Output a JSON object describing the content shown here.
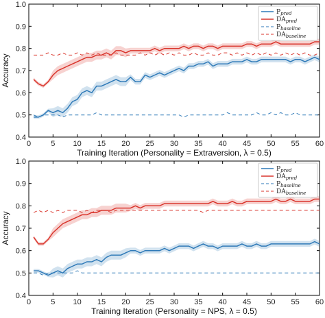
{
  "chart_data": [
    {
      "type": "line",
      "xlabel": "Training Iteration (Personality = Extraversion, λ = 0.5)",
      "ylabel": "Accuracy",
      "xlim": [
        0,
        60
      ],
      "ylim": [
        0.4,
        1.0
      ],
      "xticks": [
        "0",
        "5",
        "10",
        "15",
        "20",
        "25",
        "30",
        "35",
        "40",
        "45",
        "50",
        "55",
        "60"
      ],
      "yticks": [
        "0.4",
        "0.5",
        "0.6",
        "0.7",
        "0.8",
        "0.9",
        "1.0"
      ],
      "legend_position": "top-right",
      "grid": false,
      "series": [
        {
          "name": "P_pred",
          "label_main": "P",
          "label_sub": "pred",
          "color": "#2f7ab8",
          "style": "solid",
          "band": true,
          "x": [
            1,
            2,
            3,
            4,
            5,
            6,
            7,
            8,
            9,
            10,
            11,
            12,
            13,
            14,
            15,
            16,
            17,
            18,
            19,
            20,
            21,
            22,
            23,
            24,
            25,
            26,
            27,
            28,
            29,
            30,
            31,
            32,
            33,
            34,
            35,
            36,
            37,
            38,
            39,
            40,
            41,
            42,
            43,
            44,
            45,
            46,
            47,
            48,
            49,
            50,
            51,
            52,
            53,
            54,
            55,
            56,
            57,
            58,
            59,
            60
          ],
          "values": [
            0.49,
            0.49,
            0.5,
            0.52,
            0.51,
            0.52,
            0.51,
            0.53,
            0.56,
            0.57,
            0.6,
            0.61,
            0.6,
            0.63,
            0.63,
            0.64,
            0.65,
            0.66,
            0.65,
            0.65,
            0.67,
            0.65,
            0.65,
            0.68,
            0.67,
            0.68,
            0.69,
            0.68,
            0.69,
            0.7,
            0.71,
            0.7,
            0.72,
            0.72,
            0.73,
            0.73,
            0.74,
            0.72,
            0.73,
            0.73,
            0.73,
            0.74,
            0.74,
            0.74,
            0.75,
            0.74,
            0.74,
            0.75,
            0.75,
            0.75,
            0.75,
            0.75,
            0.75,
            0.74,
            0.75,
            0.75,
            0.74,
            0.75,
            0.76,
            0.75
          ]
        },
        {
          "name": "DA_pred",
          "label_main": "DA",
          "label_sub": "pred",
          "color": "#d9342b",
          "style": "solid",
          "band": true,
          "x": [
            1,
            2,
            3,
            4,
            5,
            6,
            7,
            8,
            9,
            10,
            11,
            12,
            13,
            14,
            15,
            16,
            17,
            18,
            19,
            20,
            21,
            22,
            23,
            24,
            25,
            26,
            27,
            28,
            29,
            30,
            31,
            32,
            33,
            34,
            35,
            36,
            37,
            38,
            39,
            40,
            41,
            42,
            43,
            44,
            45,
            46,
            47,
            48,
            49,
            50,
            51,
            52,
            53,
            54,
            55,
            56,
            57,
            58,
            59,
            60
          ],
          "values": [
            0.66,
            0.64,
            0.63,
            0.65,
            0.68,
            0.7,
            0.71,
            0.72,
            0.73,
            0.74,
            0.75,
            0.76,
            0.76,
            0.77,
            0.77,
            0.78,
            0.77,
            0.79,
            0.79,
            0.78,
            0.79,
            0.79,
            0.79,
            0.79,
            0.79,
            0.8,
            0.79,
            0.8,
            0.8,
            0.8,
            0.8,
            0.81,
            0.8,
            0.81,
            0.81,
            0.8,
            0.81,
            0.81,
            0.8,
            0.81,
            0.81,
            0.81,
            0.81,
            0.81,
            0.82,
            0.82,
            0.81,
            0.82,
            0.82,
            0.82,
            0.83,
            0.82,
            0.82,
            0.82,
            0.82,
            0.82,
            0.82,
            0.82,
            0.83,
            0.83
          ]
        },
        {
          "name": "P_baseline",
          "label_main": "P",
          "label_sub": "baseline",
          "color": "#2f7ab8",
          "style": "dashed",
          "band": false,
          "x": [
            1,
            2,
            3,
            4,
            5,
            6,
            7,
            8,
            9,
            10,
            11,
            12,
            13,
            14,
            15,
            16,
            17,
            18,
            19,
            20,
            21,
            22,
            23,
            24,
            25,
            26,
            27,
            28,
            29,
            30,
            31,
            32,
            33,
            34,
            35,
            36,
            37,
            38,
            39,
            40,
            41,
            42,
            43,
            44,
            45,
            46,
            47,
            48,
            49,
            50,
            51,
            52,
            53,
            54,
            55,
            56,
            57,
            58,
            59,
            60
          ],
          "values": [
            0.5,
            0.49,
            0.5,
            0.5,
            0.5,
            0.5,
            0.49,
            0.5,
            0.5,
            0.5,
            0.5,
            0.5,
            0.5,
            0.51,
            0.5,
            0.5,
            0.5,
            0.5,
            0.5,
            0.5,
            0.5,
            0.5,
            0.5,
            0.5,
            0.5,
            0.5,
            0.5,
            0.5,
            0.5,
            0.5,
            0.5,
            0.49,
            0.5,
            0.5,
            0.5,
            0.5,
            0.5,
            0.5,
            0.5,
            0.5,
            0.51,
            0.5,
            0.5,
            0.5,
            0.5,
            0.5,
            0.51,
            0.5,
            0.5,
            0.51,
            0.5,
            0.51,
            0.5,
            0.5,
            0.51,
            0.5,
            0.5,
            0.5,
            0.5,
            0.5
          ]
        },
        {
          "name": "DA_baseline",
          "label_main": "DA",
          "label_sub": "baseline",
          "color": "#d9342b",
          "style": "dashed",
          "band": false,
          "x": [
            1,
            2,
            3,
            4,
            5,
            6,
            7,
            8,
            9,
            10,
            11,
            12,
            13,
            14,
            15,
            16,
            17,
            18,
            19,
            20,
            21,
            22,
            23,
            24,
            25,
            26,
            27,
            28,
            29,
            30,
            31,
            32,
            33,
            34,
            35,
            36,
            37,
            38,
            39,
            40,
            41,
            42,
            43,
            44,
            45,
            46,
            47,
            48,
            49,
            50,
            51,
            52,
            53,
            54,
            55,
            56,
            57,
            58,
            59,
            60
          ],
          "values": [
            0.77,
            0.77,
            0.77,
            0.78,
            0.77,
            0.77,
            0.78,
            0.77,
            0.77,
            0.78,
            0.77,
            0.78,
            0.77,
            0.78,
            0.77,
            0.77,
            0.77,
            0.78,
            0.77,
            0.77,
            0.77,
            0.77,
            0.78,
            0.77,
            0.78,
            0.77,
            0.78,
            0.77,
            0.78,
            0.77,
            0.78,
            0.77,
            0.77,
            0.78,
            0.77,
            0.77,
            0.78,
            0.77,
            0.77,
            0.78,
            0.78,
            0.77,
            0.78,
            0.77,
            0.78,
            0.77,
            0.78,
            0.77,
            0.78,
            0.77,
            0.78,
            0.77,
            0.78,
            0.77,
            0.78,
            0.77,
            0.78,
            0.77,
            0.77,
            0.78
          ]
        }
      ]
    },
    {
      "type": "line",
      "xlabel": "Training Iteration (Personality = NPS, λ = 0.5)",
      "ylabel": "Accuracy",
      "xlim": [
        0,
        60
      ],
      "ylim": [
        0.4,
        1.0
      ],
      "xticks": [
        "0",
        "5",
        "10",
        "15",
        "20",
        "25",
        "30",
        "35",
        "40",
        "45",
        "50",
        "55",
        "60"
      ],
      "yticks": [
        "0.4",
        "0.5",
        "0.6",
        "0.7",
        "0.8",
        "0.9",
        "1.0"
      ],
      "legend_position": "top-right",
      "grid": false,
      "series": [
        {
          "name": "P_pred",
          "label_main": "P",
          "label_sub": "pred",
          "color": "#2f7ab8",
          "style": "solid",
          "band": true,
          "x": [
            1,
            2,
            3,
            4,
            5,
            6,
            7,
            8,
            9,
            10,
            11,
            12,
            13,
            14,
            15,
            16,
            17,
            18,
            19,
            20,
            21,
            22,
            23,
            24,
            25,
            26,
            27,
            28,
            29,
            30,
            31,
            32,
            33,
            34,
            35,
            36,
            37,
            38,
            39,
            40,
            41,
            42,
            43,
            44,
            45,
            46,
            47,
            48,
            49,
            50,
            51,
            52,
            53,
            54,
            55,
            56,
            57,
            58,
            59,
            60
          ],
          "values": [
            0.51,
            0.51,
            0.5,
            0.49,
            0.5,
            0.51,
            0.5,
            0.52,
            0.53,
            0.54,
            0.54,
            0.55,
            0.55,
            0.56,
            0.55,
            0.57,
            0.58,
            0.58,
            0.58,
            0.59,
            0.6,
            0.6,
            0.59,
            0.6,
            0.6,
            0.6,
            0.6,
            0.61,
            0.6,
            0.61,
            0.62,
            0.62,
            0.62,
            0.61,
            0.62,
            0.63,
            0.62,
            0.62,
            0.61,
            0.62,
            0.62,
            0.62,
            0.62,
            0.63,
            0.62,
            0.62,
            0.63,
            0.62,
            0.62,
            0.63,
            0.63,
            0.63,
            0.63,
            0.63,
            0.63,
            0.63,
            0.63,
            0.63,
            0.64,
            0.63
          ]
        },
        {
          "name": "DA_pred",
          "label_main": "DA",
          "label_sub": "pred",
          "color": "#d9342b",
          "style": "solid",
          "band": true,
          "x": [
            1,
            2,
            3,
            4,
            5,
            6,
            7,
            8,
            9,
            10,
            11,
            12,
            13,
            14,
            15,
            16,
            17,
            18,
            19,
            20,
            21,
            22,
            23,
            24,
            25,
            26,
            27,
            28,
            29,
            30,
            31,
            32,
            33,
            34,
            35,
            36,
            37,
            38,
            39,
            40,
            41,
            42,
            43,
            44,
            45,
            46,
            47,
            48,
            49,
            50,
            51,
            52,
            53,
            54,
            55,
            56,
            57,
            58,
            59,
            60
          ],
          "values": [
            0.66,
            0.63,
            0.63,
            0.65,
            0.68,
            0.7,
            0.72,
            0.73,
            0.74,
            0.75,
            0.76,
            0.76,
            0.77,
            0.77,
            0.78,
            0.78,
            0.78,
            0.79,
            0.79,
            0.79,
            0.79,
            0.8,
            0.79,
            0.8,
            0.8,
            0.8,
            0.8,
            0.81,
            0.81,
            0.81,
            0.81,
            0.81,
            0.81,
            0.81,
            0.81,
            0.81,
            0.81,
            0.82,
            0.81,
            0.81,
            0.81,
            0.82,
            0.81,
            0.81,
            0.82,
            0.82,
            0.82,
            0.82,
            0.82,
            0.82,
            0.83,
            0.82,
            0.82,
            0.83,
            0.82,
            0.82,
            0.82,
            0.82,
            0.83,
            0.83
          ]
        },
        {
          "name": "P_baseline",
          "label_main": "P",
          "label_sub": "baseline",
          "color": "#2f7ab8",
          "style": "dashed",
          "band": false,
          "x": [
            1,
            2,
            3,
            4,
            5,
            6,
            7,
            8,
            9,
            10,
            11,
            12,
            13,
            14,
            15,
            16,
            17,
            18,
            19,
            20,
            21,
            22,
            23,
            24,
            25,
            26,
            27,
            28,
            29,
            30,
            31,
            32,
            33,
            34,
            35,
            36,
            37,
            38,
            39,
            40,
            41,
            42,
            43,
            44,
            45,
            46,
            47,
            48,
            49,
            50,
            51,
            52,
            53,
            54,
            55,
            56,
            57,
            58,
            59,
            60
          ],
          "values": [
            0.5,
            0.5,
            0.49,
            0.5,
            0.5,
            0.5,
            0.5,
            0.5,
            0.5,
            0.51,
            0.5,
            0.5,
            0.5,
            0.5,
            0.5,
            0.5,
            0.5,
            0.5,
            0.5,
            0.5,
            0.5,
            0.5,
            0.5,
            0.5,
            0.5,
            0.5,
            0.5,
            0.5,
            0.5,
            0.5,
            0.5,
            0.5,
            0.5,
            0.5,
            0.5,
            0.5,
            0.5,
            0.5,
            0.5,
            0.5,
            0.5,
            0.5,
            0.5,
            0.5,
            0.5,
            0.5,
            0.5,
            0.5,
            0.5,
            0.5,
            0.5,
            0.5,
            0.5,
            0.5,
            0.5,
            0.5,
            0.5,
            0.5,
            0.5,
            0.5
          ]
        },
        {
          "name": "DA_baseline",
          "label_main": "DA",
          "label_sub": "baseline",
          "color": "#d9342b",
          "style": "dashed",
          "band": false,
          "x": [
            1,
            2,
            3,
            4,
            5,
            6,
            7,
            8,
            9,
            10,
            11,
            12,
            13,
            14,
            15,
            16,
            17,
            18,
            19,
            20,
            21,
            22,
            23,
            24,
            25,
            26,
            27,
            28,
            29,
            30,
            31,
            32,
            33,
            34,
            35,
            36,
            37,
            38,
            39,
            40,
            41,
            42,
            43,
            44,
            45,
            46,
            47,
            48,
            49,
            50,
            51,
            52,
            53,
            54,
            55,
            56,
            57,
            58,
            59,
            60
          ],
          "values": [
            0.77,
            0.78,
            0.77,
            0.78,
            0.77,
            0.78,
            0.77,
            0.78,
            0.78,
            0.78,
            0.77,
            0.78,
            0.77,
            0.78,
            0.78,
            0.78,
            0.77,
            0.78,
            0.78,
            0.78,
            0.78,
            0.78,
            0.78,
            0.78,
            0.78,
            0.78,
            0.78,
            0.78,
            0.78,
            0.78,
            0.78,
            0.78,
            0.78,
            0.78,
            0.78,
            0.77,
            0.78,
            0.78,
            0.78,
            0.78,
            0.78,
            0.78,
            0.78,
            0.78,
            0.78,
            0.78,
            0.78,
            0.78,
            0.78,
            0.78,
            0.78,
            0.78,
            0.78,
            0.78,
            0.78,
            0.78,
            0.78,
            0.78,
            0.78,
            0.78
          ]
        }
      ]
    }
  ]
}
